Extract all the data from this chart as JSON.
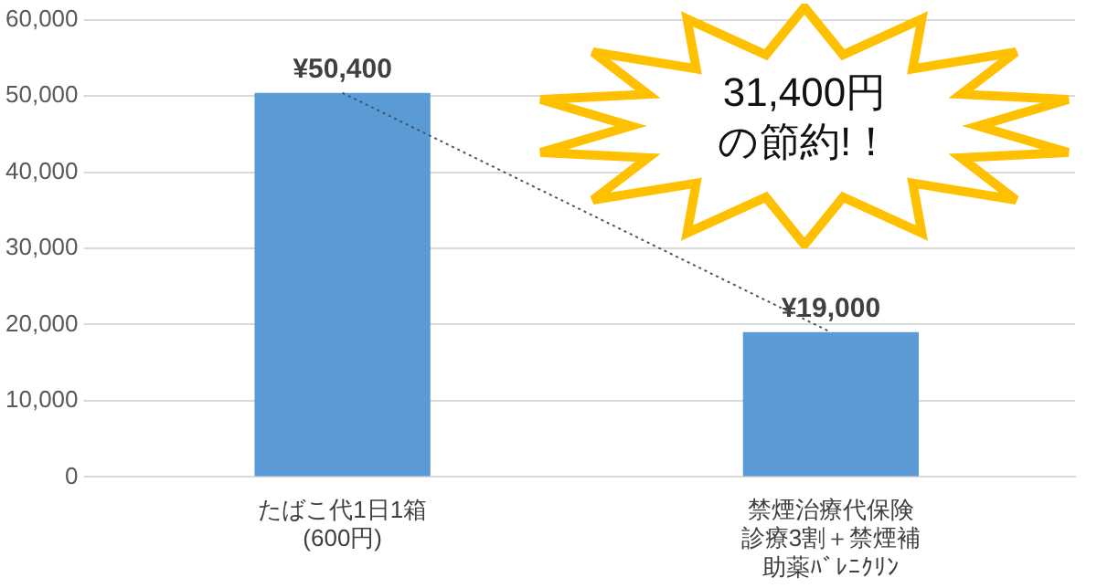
{
  "chart_data": {
    "type": "bar",
    "categories": [
      "たばこ代1日1箱(600円)",
      "禁煙治療代保険診療3割＋禁煙補助薬ﾊﾞﾚﾆｸﾘﾝ"
    ],
    "series": [
      {
        "color": "#5b9bd5",
        "values": [
          50400,
          19000
        ],
        "value_labels": [
          "¥50,400",
          "¥19,000"
        ]
      },
      {
        "type": "line",
        "color": "#44546a",
        "values": [
          50400,
          19000
        ],
        "line_style": "dotted",
        "marker": "none"
      }
    ],
    "ylim": [
      0,
      60000
    ],
    "yticks": [
      {
        "value": 0,
        "label": "0"
      },
      {
        "value": 10000,
        "label": "10,000"
      },
      {
        "value": 20000,
        "label": "20,000"
      },
      {
        "value": 30000,
        "label": "30,000"
      },
      {
        "value": 40000,
        "label": "40,000"
      },
      {
        "value": 50000,
        "label": "50,000"
      },
      {
        "value": 60000,
        "label": "60,000"
      }
    ],
    "grid": "y",
    "legend": false,
    "annotations": [
      "31,400円",
      "の節約!！"
    ]
  }
}
